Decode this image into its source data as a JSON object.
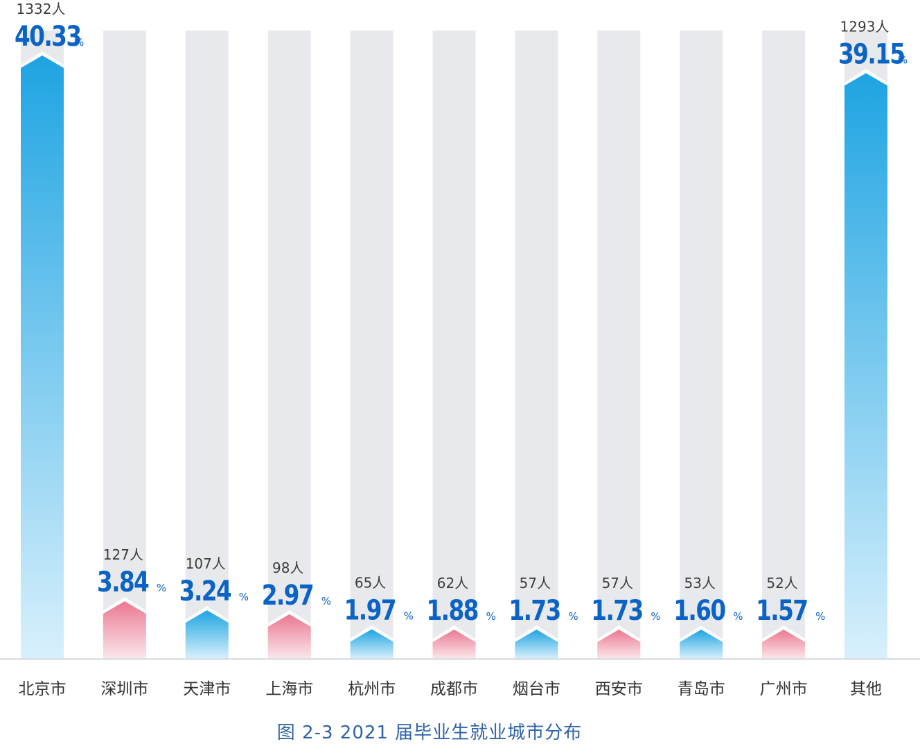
{
  "chart_data": {
    "type": "bar",
    "title": "图 2-3  2021 届毕业生就业城市分布",
    "categories": [
      "北京市",
      "深圳市",
      "天津市",
      "上海市",
      "杭州市",
      "成都市",
      "烟台市",
      "西安市",
      "青岛市",
      "广州市",
      "其他"
    ],
    "values": [
      40.33,
      3.84,
      3.24,
      2.97,
      1.97,
      1.88,
      1.73,
      1.73,
      1.6,
      1.57,
      39.15
    ],
    "value_labels": [
      "40.33",
      "3.84",
      "3.24",
      "2.97",
      "1.97",
      "1.88",
      "1.73",
      "1.73",
      "1.60",
      "1.57",
      "39.15"
    ],
    "counts": [
      1332,
      127,
      107,
      98,
      65,
      62,
      57,
      57,
      53,
      52,
      1293
    ],
    "count_labels": [
      "1332人",
      "127人",
      "107人",
      "98人",
      "65人",
      "62人",
      "57人",
      "57人",
      "53人",
      "52人",
      "1293人"
    ],
    "unit_percent": "%",
    "bar_colors": [
      "blue",
      "pink",
      "blue",
      "pink",
      "blue",
      "pink",
      "blue",
      "pink",
      "blue",
      "pink",
      "blue"
    ],
    "colors": {
      "track": "#e8e9ec",
      "blue_top": "#1ea4e2",
      "blue_bottom": "#d8f0fc",
      "pink_top": "#eb7891",
      "pink_bottom": "#fbe7ec",
      "value_text": "#0a63c5",
      "count_text": "#3c3c3c",
      "caption_text": "#2f63a8",
      "axis_line": "#cfd6dd"
    },
    "ylim": [
      0,
      42
    ],
    "grid": false,
    "legend": "none"
  }
}
